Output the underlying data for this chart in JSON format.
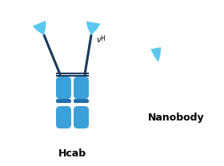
{
  "bg_color": "#ffffff",
  "ab_color": "#3ca0d8",
  "ab_light": "#5bc8f0",
  "line_color": "#1a3a5c",
  "hcab_label": "Hcab",
  "nanobody_label": "Nanobody",
  "vh_label": "v",
  "vh_sub": "H",
  "label_fontsize": 9,
  "vh_fontsize": 7,
  "fig_w": 2.8,
  "fig_h": 2.08,
  "dpi": 100
}
